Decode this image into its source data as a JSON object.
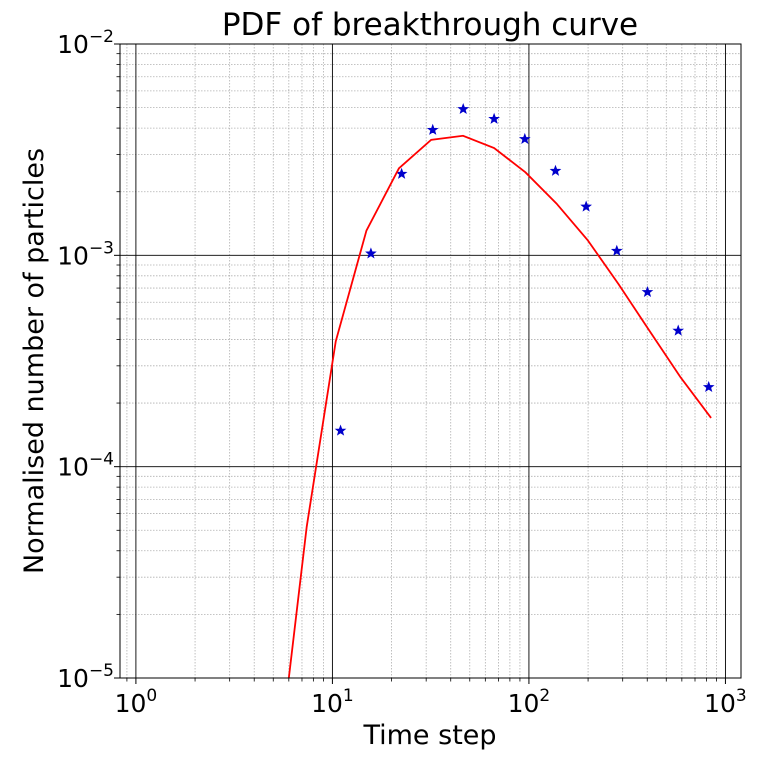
{
  "chart_data": {
    "type": "scatter",
    "title": "PDF of breakthrough curve",
    "xlabel": "Time step",
    "ylabel": "Normalised number of particles",
    "xscale": "log",
    "yscale": "log",
    "xlim": [
      0.83,
      1200
    ],
    "ylim": [
      1e-05,
      0.01
    ],
    "grid": true,
    "x_ticks": [
      {
        "value": 1,
        "base": "10",
        "exp": "0"
      },
      {
        "value": 10,
        "base": "10",
        "exp": "1"
      },
      {
        "value": 100,
        "base": "10",
        "exp": "2"
      },
      {
        "value": 1000,
        "base": "10",
        "exp": "3"
      }
    ],
    "y_ticks": [
      {
        "value": 1e-05,
        "base": "10",
        "exp": "−5"
      },
      {
        "value": 0.0001,
        "base": "10",
        "exp": "−4"
      },
      {
        "value": 0.001,
        "base": "10",
        "exp": "−3"
      },
      {
        "value": 0.01,
        "base": "10",
        "exp": "−2"
      }
    ],
    "series": [
      {
        "type": "scatter",
        "marker": "star",
        "color": "#0000cc",
        "x": [
          11,
          15.7,
          22.5,
          32.4,
          46.3,
          66.5,
          95.3,
          136.5,
          195.5,
          280,
          401,
          575,
          822
        ],
        "y": [
          0.000148,
          0.00102,
          0.00243,
          0.00392,
          0.00492,
          0.00442,
          0.00355,
          0.00251,
          0.0017,
          0.00105,
          0.00067,
          0.00044,
          0.000238
        ]
      },
      {
        "type": "line",
        "color": "#ff0000",
        "x": [
          6.0,
          7.4,
          10.4,
          14.9,
          21.8,
          31.8,
          46.2,
          66.5,
          96,
          138,
          199,
          286,
          410,
          589,
          845
        ],
        "y": [
          1e-05,
          5.2e-05,
          0.000392,
          0.00131,
          0.00258,
          0.00352,
          0.00368,
          0.00322,
          0.00247,
          0.00176,
          0.00118,
          0.00073,
          0.00044,
          0.000266,
          0.00017
        ]
      }
    ]
  }
}
